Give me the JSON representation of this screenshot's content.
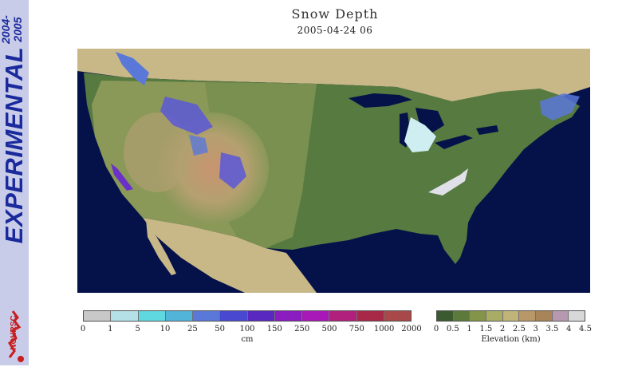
{
  "header": {
    "title": "Snow Depth",
    "datetime": "2005-04-24 06"
  },
  "sidebar": {
    "label": "EXPERIMENTAL",
    "years": [
      "2004-",
      "2005"
    ],
    "logo_text": "NOHRSC",
    "logo_icon": "nohrsc-logo-icon"
  },
  "snow_legend": {
    "unit": "cm",
    "ticks": [
      "0",
      "1",
      "5",
      "10",
      "25",
      "50",
      "100",
      "150",
      "250",
      "500",
      "750",
      "1000",
      "2000"
    ],
    "colors": [
      "#c8c8c8",
      "#b4e0e8",
      "#5fd8e0",
      "#52b4d8",
      "#5a78d8",
      "#4848d0",
      "#5828c0",
      "#8a1cc0",
      "#a818b8",
      "#b0207c",
      "#a82848",
      "#a84848"
    ]
  },
  "elevation_legend": {
    "unit": "Elevation (km)",
    "ticks": [
      "0",
      "0.5",
      "1",
      "1.5",
      "2",
      "2.5",
      "3",
      "3.5",
      "4",
      "4.5"
    ],
    "colors": [
      "#3c5a30",
      "#5c7a3c",
      "#849448",
      "#a8ac64",
      "#c0b478",
      "#b89868",
      "#a88458",
      "#b898b0",
      "#d8d8d8"
    ]
  },
  "map": {
    "colors": {
      "ocean": "#05124a",
      "canada": "#c8b888",
      "mexico": "#c8b888",
      "lowland": "#567a40",
      "plains": "#7a9050",
      "highland": "#b0a070",
      "mountain": "#c89470",
      "snow_light": "#cfeef2",
      "snow_mid": "#5a78d8",
      "snow_deep": "#6a30c8",
      "great_lakes": "#05124a"
    }
  }
}
